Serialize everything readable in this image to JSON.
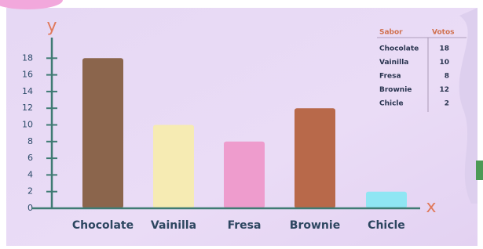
{
  "chart_data": {
    "type": "bar",
    "x_label": "x",
    "y_label": "y",
    "categories": [
      "Chocolate",
      "Vainilla",
      "Fresa",
      "Brownie",
      "Chicle"
    ],
    "values": [
      18,
      10,
      8,
      12,
      2
    ],
    "colors": [
      "#8b654c",
      "#f6ebb3",
      "#ee9ccd",
      "#b8694a",
      "#8fe6f3"
    ],
    "ylim": [
      0,
      20
    ],
    "yticks": [
      0,
      2,
      4,
      6,
      8,
      10,
      12,
      14,
      16,
      18
    ],
    "table_headers": [
      "Sabor",
      "Votos"
    ]
  }
}
